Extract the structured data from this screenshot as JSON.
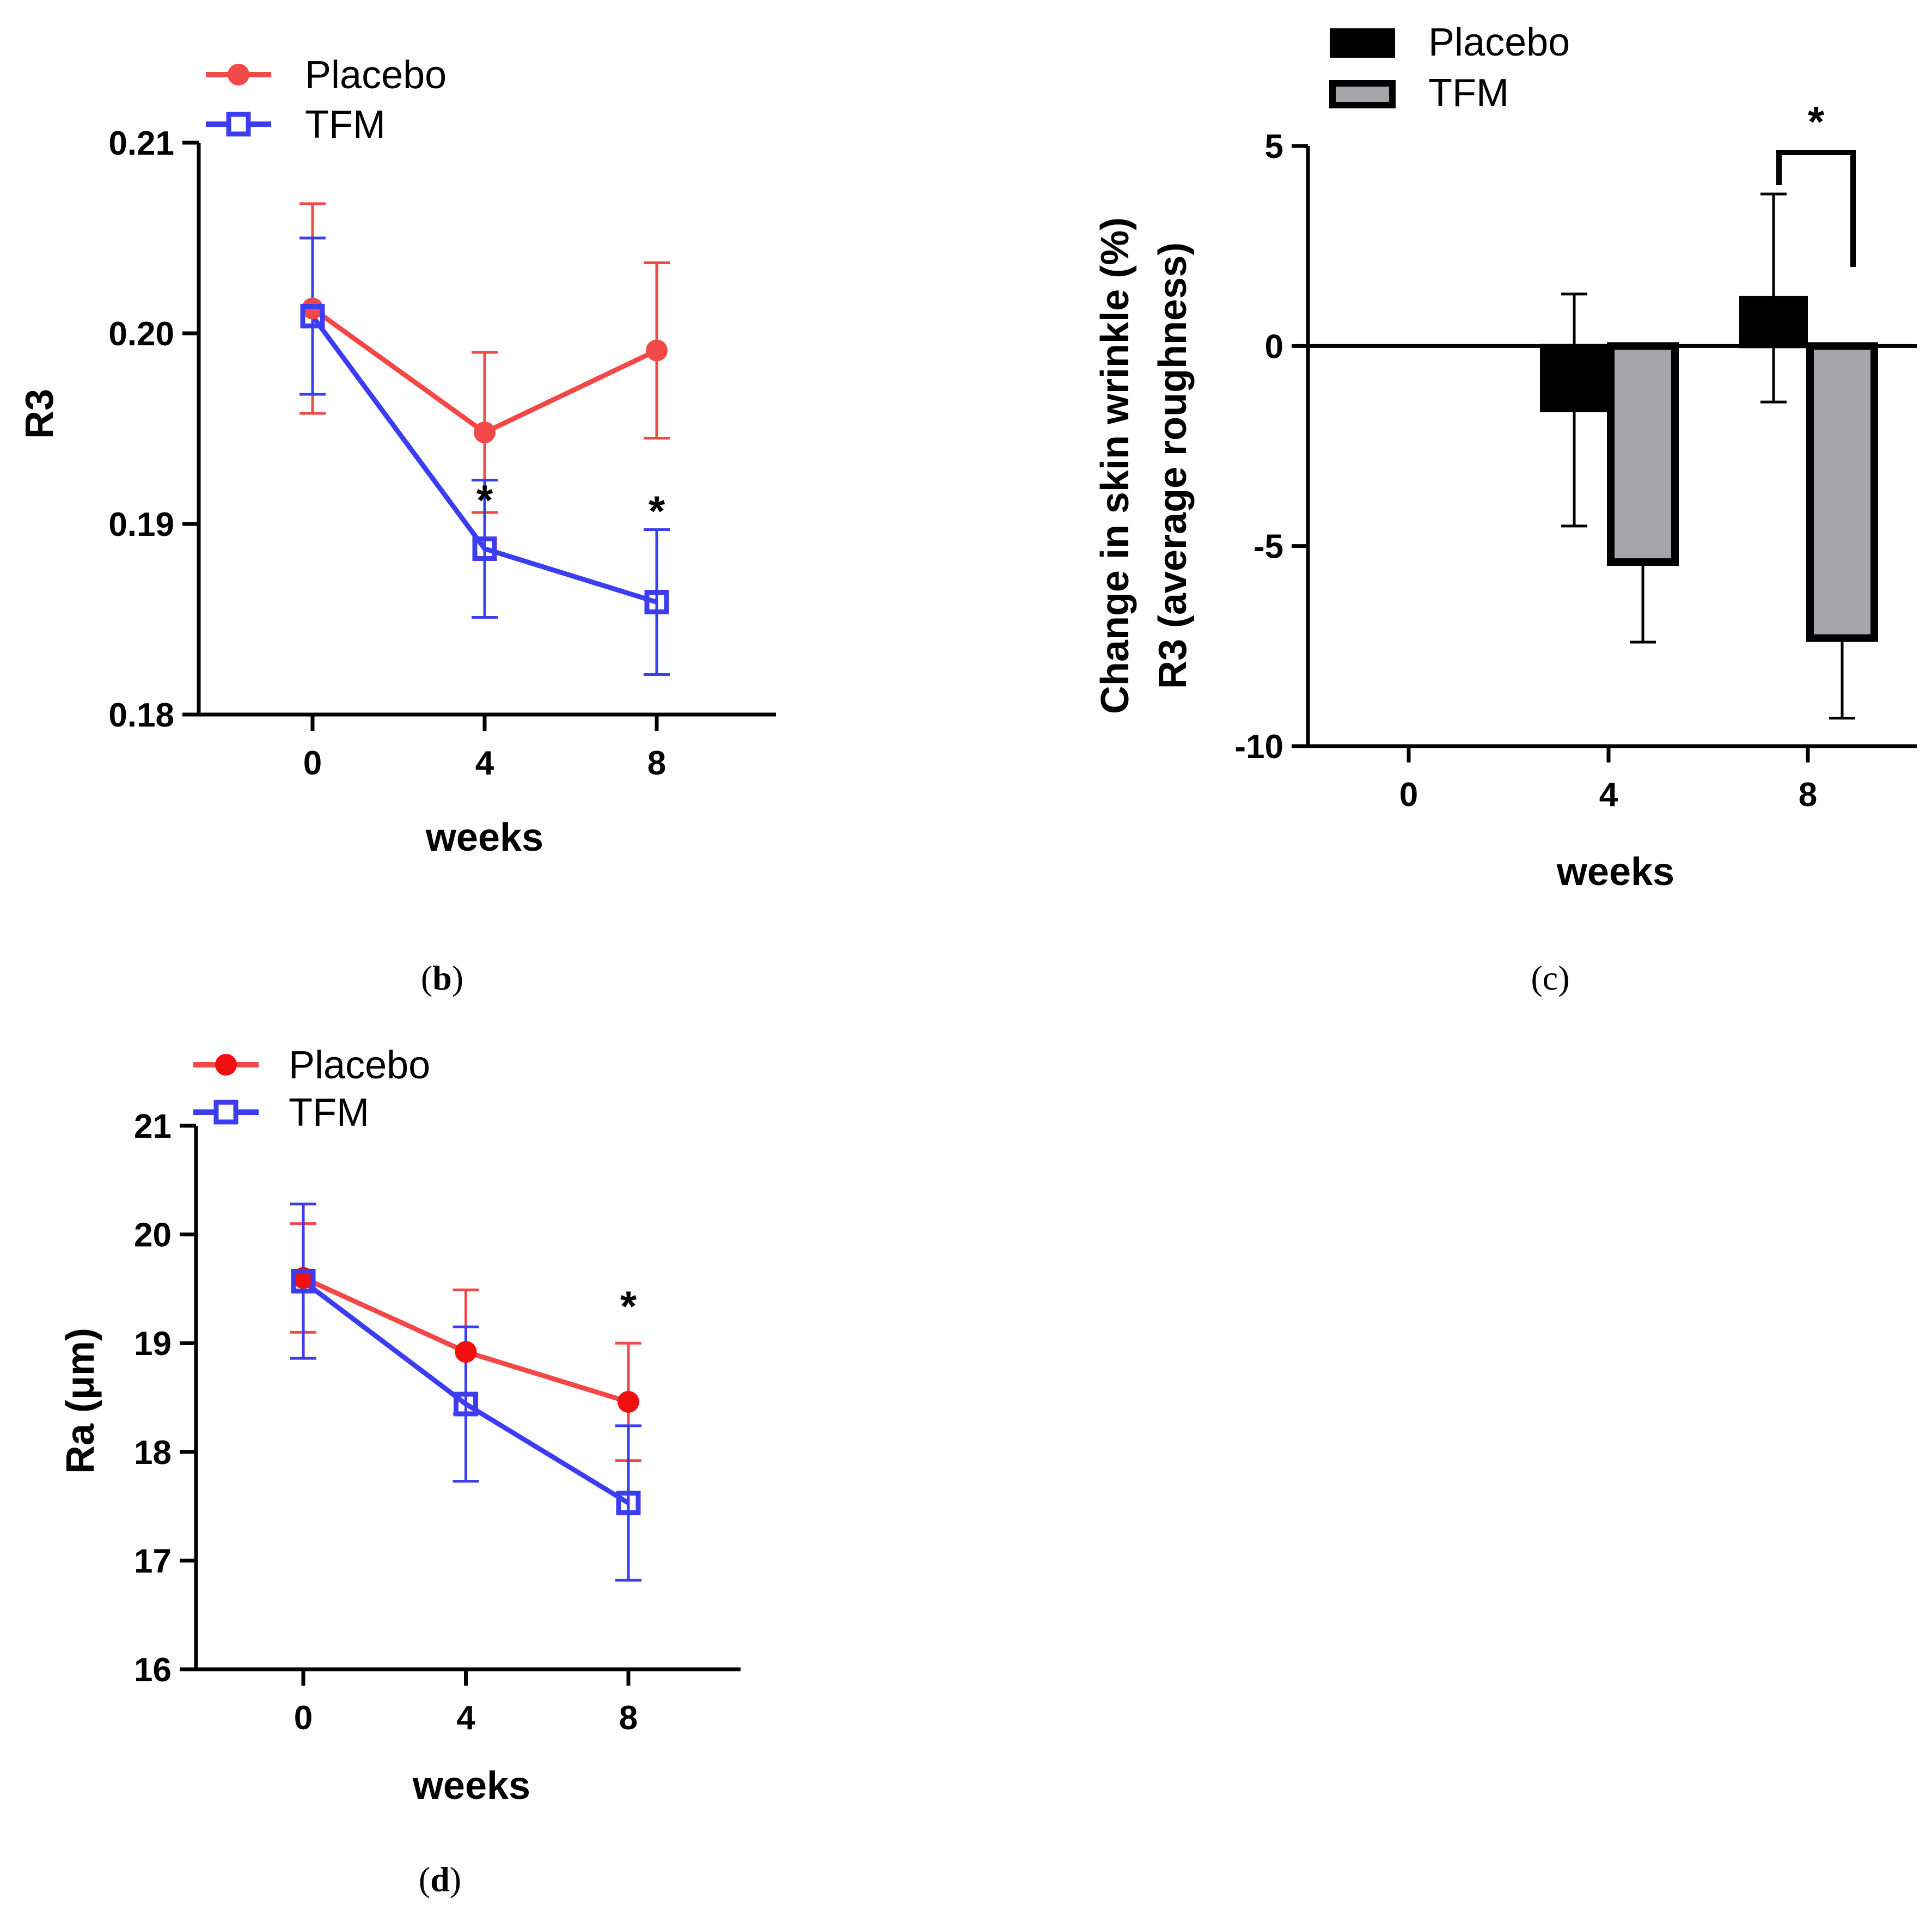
{
  "captions": {
    "b_open": "(",
    "b_letter": "b",
    "b_close": ")",
    "c": "(c)",
    "d_open": "(",
    "d_letter": "d",
    "d_close": ")"
  },
  "colors": {
    "placebo_line": "#f24848",
    "tfm_line": "#3c3cf0",
    "placebo_bar": "#000000",
    "tfm_bar": "#a5a5aa"
  },
  "chart_data": [
    {
      "id": "b",
      "type": "line",
      "xlabel": "weeks",
      "ylabel": "R3",
      "x": [
        0,
        4,
        8
      ],
      "xticks": [
        "0",
        "4",
        "8"
      ],
      "yticks": [
        "0.18",
        "0.19",
        "0.20",
        "0.21"
      ],
      "ylim": [
        0.18,
        0.21
      ],
      "legend": "top-left",
      "series": [
        {
          "name": "Placebo",
          "marker": "filled-circle",
          "values": [
            0.2013,
            0.1948,
            0.1991
          ],
          "error": [
            0.0055,
            0.0042,
            0.0046
          ]
        },
        {
          "name": "TFM",
          "marker": "open-square",
          "values": [
            0.2009,
            0.1887,
            0.1859
          ],
          "error": [
            0.0041,
            0.0036,
            0.0038
          ]
        }
      ],
      "annotations": [
        {
          "x": 4,
          "text": "*"
        },
        {
          "x": 8,
          "text": "*"
        }
      ]
    },
    {
      "id": "c",
      "type": "bar",
      "xlabel": "weeks",
      "ylabel_line1": "Change in skin wrinkle (%)",
      "ylabel_line2": "R3 (average roughness)",
      "categories": [
        "0",
        "4",
        "8"
      ],
      "yticks": [
        "-10",
        "-5",
        "0",
        "5"
      ],
      "ylim": [
        -10,
        5
      ],
      "legend": "top-left",
      "series": [
        {
          "name": "Placebo",
          "values": [
            null,
            -1.6,
            1.2
          ],
          "error": [
            null,
            2.9,
            2.6
          ]
        },
        {
          "name": "TFM",
          "values": [
            null,
            -5.4,
            -7.3
          ],
          "error": [
            null,
            2.0,
            2.0
          ]
        }
      ],
      "annotations": [
        {
          "x": 8,
          "text": "*",
          "bracket": true
        }
      ]
    },
    {
      "id": "d",
      "type": "line",
      "xlabel": "weeks",
      "ylabel": "Ra (μm)",
      "x": [
        0,
        4,
        8
      ],
      "xticks": [
        "0",
        "4",
        "8"
      ],
      "yticks": [
        "16",
        "17",
        "18",
        "19",
        "20",
        "21"
      ],
      "ylim": [
        16,
        21
      ],
      "legend": "top-left",
      "series": [
        {
          "name": "Placebo",
          "marker": "filled-circle",
          "values": [
            19.6,
            18.92,
            18.46
          ],
          "error": [
            0.5,
            0.57,
            0.54
          ]
        },
        {
          "name": "TFM",
          "marker": "open-square",
          "values": [
            19.57,
            18.44,
            17.53
          ],
          "error": [
            0.71,
            0.71,
            0.71
          ]
        }
      ],
      "annotations": [
        {
          "x": 8,
          "text": "*"
        }
      ]
    }
  ]
}
